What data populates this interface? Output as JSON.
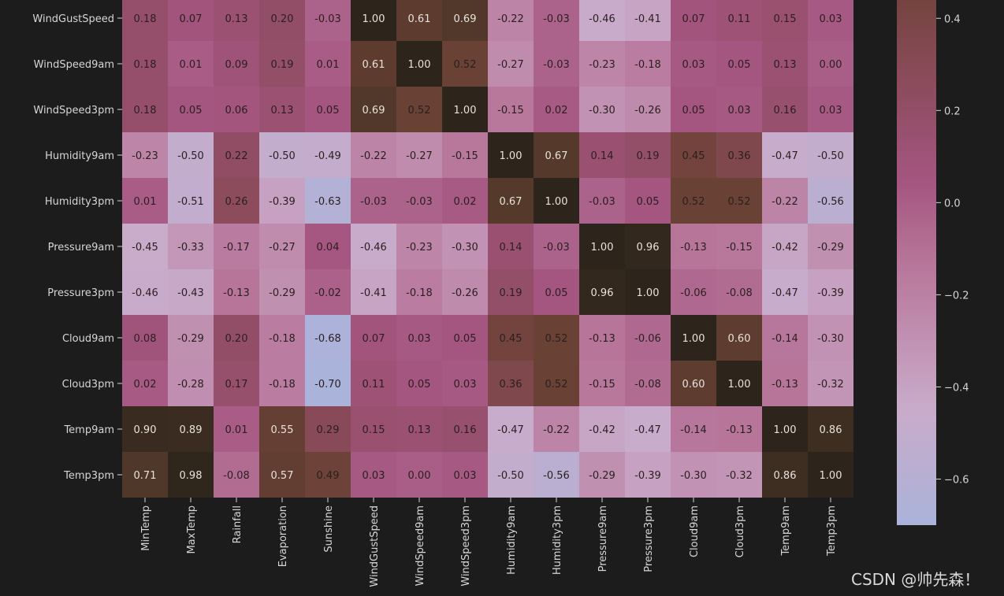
{
  "chart_data": {
    "type": "heatmap",
    "title": "",
    "xlabel": "",
    "ylabel": "",
    "columns": [
      "MinTemp",
      "MaxTemp",
      "Rainfall",
      "Evaporation",
      "Sunshine",
      "WindGustSpeed",
      "WindSpeed9am",
      "WindSpeed3pm",
      "Humidity9am",
      "Humidity3pm",
      "Pressure9am",
      "Pressure3pm",
      "Cloud9am",
      "Cloud3pm",
      "Temp9am",
      "Temp3pm"
    ],
    "rows": [
      "WindGustSpeed",
      "WindSpeed9am",
      "WindSpeed3pm",
      "Humidity9am",
      "Humidity3pm",
      "Pressure9am",
      "Pressure3pm",
      "Cloud9am",
      "Cloud3pm",
      "Temp9am",
      "Temp3pm"
    ],
    "values": [
      [
        0.18,
        0.07,
        0.13,
        0.2,
        -0.03,
        1.0,
        0.61,
        0.69,
        -0.22,
        -0.03,
        -0.46,
        -0.41,
        0.07,
        0.11,
        0.15,
        0.03
      ],
      [
        0.18,
        0.01,
        0.09,
        0.19,
        0.01,
        0.61,
        1.0,
        0.52,
        -0.27,
        -0.03,
        -0.23,
        -0.18,
        0.03,
        0.05,
        0.13,
        0.0
      ],
      [
        0.18,
        0.05,
        0.06,
        0.13,
        0.05,
        0.69,
        0.52,
        1.0,
        -0.15,
        0.02,
        -0.3,
        -0.26,
        0.05,
        0.03,
        0.16,
        0.03
      ],
      [
        -0.23,
        -0.5,
        0.22,
        -0.5,
        -0.49,
        -0.22,
        -0.27,
        -0.15,
        1.0,
        0.67,
        0.14,
        0.19,
        0.45,
        0.36,
        -0.47,
        -0.5
      ],
      [
        0.01,
        -0.51,
        0.26,
        -0.39,
        -0.63,
        -0.03,
        -0.03,
        0.02,
        0.67,
        1.0,
        -0.03,
        0.05,
        0.52,
        0.52,
        -0.22,
        -0.56
      ],
      [
        -0.45,
        -0.33,
        -0.17,
        -0.27,
        0.04,
        -0.46,
        -0.23,
        -0.3,
        0.14,
        -0.03,
        1.0,
        0.96,
        -0.13,
        -0.15,
        -0.42,
        -0.29
      ],
      [
        -0.46,
        -0.43,
        -0.13,
        -0.29,
        -0.02,
        -0.41,
        -0.18,
        -0.26,
        0.19,
        0.05,
        0.96,
        1.0,
        -0.06,
        -0.08,
        -0.47,
        -0.39
      ],
      [
        0.08,
        -0.29,
        0.2,
        -0.18,
        -0.68,
        0.07,
        0.03,
        0.05,
        0.45,
        0.52,
        -0.13,
        -0.06,
        1.0,
        0.6,
        -0.14,
        -0.3
      ],
      [
        0.02,
        -0.28,
        0.17,
        -0.18,
        -0.7,
        0.11,
        0.05,
        0.03,
        0.36,
        0.52,
        -0.15,
        -0.08,
        0.6,
        1.0,
        -0.13,
        -0.32
      ],
      [
        0.9,
        0.89,
        0.01,
        0.55,
        0.29,
        0.15,
        0.13,
        0.16,
        -0.47,
        -0.22,
        -0.42,
        -0.47,
        -0.14,
        -0.13,
        1.0,
        0.86
      ],
      [
        0.71,
        0.98,
        -0.08,
        0.57,
        0.49,
        0.03,
        0.0,
        0.03,
        -0.5,
        -0.56,
        -0.29,
        -0.39,
        -0.3,
        -0.32,
        0.86,
        1.0
      ]
    ],
    "annotation_format": "0.00",
    "colorbar": {
      "range": [
        -0.7,
        0.45
      ],
      "ticks": [
        0.4,
        0.2,
        0.0,
        -0.2,
        -0.4,
        -0.6
      ],
      "tick_labels": [
        "0.4",
        "0.2",
        "0.0",
        "−0.2",
        "−0.4",
        "−0.6"
      ]
    },
    "colormap_stops": [
      {
        "v": -0.7,
        "color": "#aab3da"
      },
      {
        "v": -0.45,
        "color": "#c9abca"
      },
      {
        "v": -0.15,
        "color": "#b8789c"
      },
      {
        "v": 0.05,
        "color": "#a45580"
      },
      {
        "v": 0.25,
        "color": "#8d4c5e"
      },
      {
        "v": 0.5,
        "color": "#6c4236"
      },
      {
        "v": 0.75,
        "color": "#4a3526"
      },
      {
        "v": 1.0,
        "color": "#2d251b"
      }
    ],
    "text_colors": {
      "dark": "#2a1f1f",
      "light": "#e8e2da"
    }
  },
  "watermark": "CSDN @帅先森！"
}
